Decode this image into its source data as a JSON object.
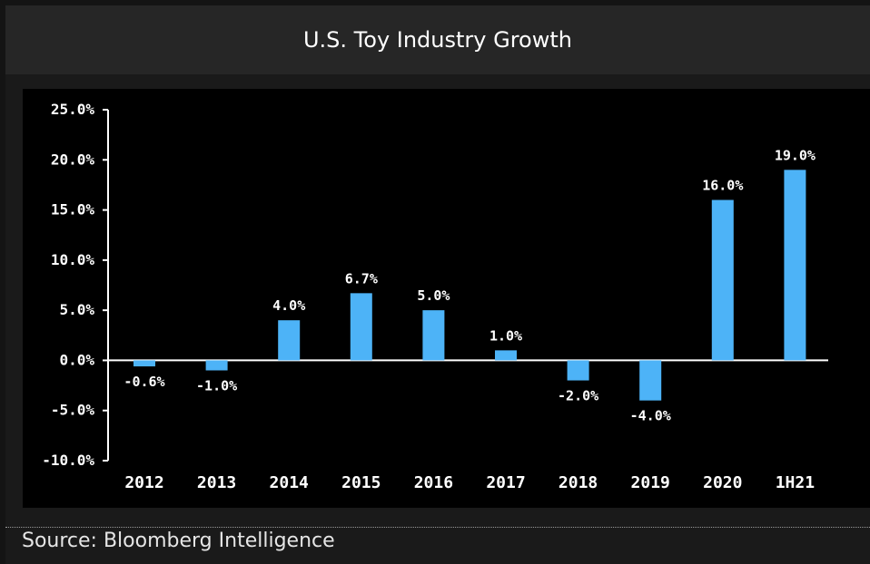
{
  "title": "U.S. Toy Industry Growth",
  "source": "Source: Bloomberg Intelligence",
  "colors": {
    "bar": "#4db3f7",
    "axis": "#ffffff",
    "panel": "#000000"
  },
  "chart_data": {
    "type": "bar",
    "title": "U.S. Toy Industry Growth",
    "xlabel": "",
    "ylabel": "",
    "categories": [
      "2012",
      "2013",
      "2014",
      "2015",
      "2016",
      "2017",
      "2018",
      "2019",
      "2020",
      "1H21"
    ],
    "values": [
      -0.6,
      -1.0,
      4.0,
      6.7,
      5.0,
      1.0,
      -2.0,
      -4.0,
      16.0,
      19.0
    ],
    "data_labels": [
      "-0.6%",
      "-1.0%",
      "4.0%",
      "6.7%",
      "5.0%",
      "1.0%",
      "-2.0%",
      "-4.0%",
      "16.0%",
      "19.0%"
    ],
    "ylim": [
      -10,
      25
    ],
    "yticks": [
      25,
      20,
      15,
      10,
      5,
      0,
      -5,
      -10
    ],
    "ytick_labels": [
      "25.0%",
      "20.0%",
      "15.0%",
      "10.0%",
      "5.0%",
      "0.0%",
      "-5.0%",
      "-10.0%"
    ],
    "grid": false,
    "legend": "none"
  }
}
